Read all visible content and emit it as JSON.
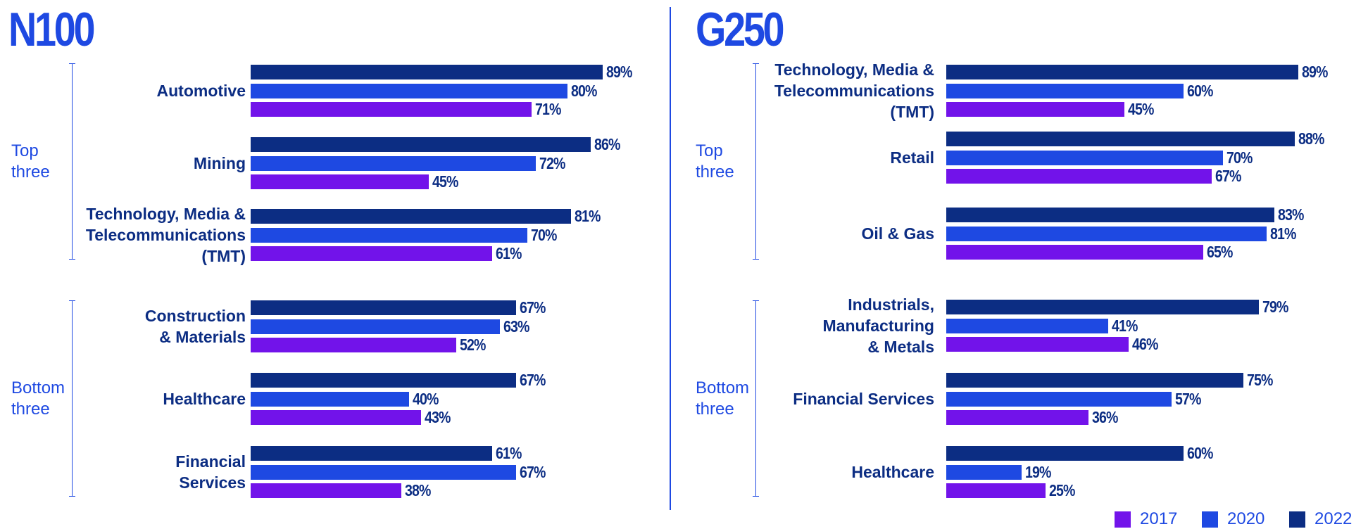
{
  "chart_data": [
    {
      "type": "bar",
      "title": "N100",
      "categories": [
        "Automotive",
        "Mining",
        "Technology, Media &\nTelecommunications\n(TMT)",
        "Construction\n& Materials",
        "Healthcare",
        "Financial\nServices"
      ],
      "groups": [
        "Top\nthree",
        "Bottom\nthree"
      ],
      "xlim": [
        0,
        100
      ],
      "series": [
        {
          "color": "#7213ea",
          "values": [
            71,
            45,
            61,
            52,
            43,
            38
          ],
          "value_labels": [
            "71%",
            "45%",
            "61%",
            "52%",
            "43%",
            "38%"
          ]
        },
        {
          "color": "#1e49e2",
          "values": [
            80,
            72,
            70,
            63,
            40,
            67
          ],
          "value_labels": [
            "80%",
            "72%",
            "70%",
            "63%",
            "40%",
            "67%"
          ]
        },
        {
          "color": "#0c2d83",
          "values": [
            89,
            86,
            81,
            67,
            67,
            61
          ],
          "value_labels": [
            "89%",
            "86%",
            "81%",
            "67%",
            "67%",
            "61%"
          ]
        }
      ]
    },
    {
      "type": "bar",
      "title": "G250",
      "categories": [
        "Technology, Media &\nTelecommunications\n(TMT)",
        "Retail",
        "Oil & Gas",
        "Industrials,\nManufacturing\n& Metals",
        "Financial Services",
        "Healthcare"
      ],
      "groups": [
        "Top\nthree",
        "Bottom\nthree"
      ],
      "xlim": [
        0,
        100
      ],
      "series": [
        {
          "name": "2017",
          "color": "#7213ea",
          "values": [
            45,
            67,
            65,
            46,
            36,
            25
          ],
          "value_labels": [
            "45%",
            "67%",
            "65%",
            "46%",
            "36%",
            "25%"
          ]
        },
        {
          "name": "2020",
          "color": "#1e49e2",
          "values": [
            60,
            70,
            81,
            41,
            57,
            19
          ],
          "value_labels": [
            "60%",
            "70%",
            "81%",
            "41%",
            "57%",
            "19%"
          ]
        },
        {
          "name": "2022",
          "color": "#0c2d83",
          "values": [
            89,
            88,
            83,
            79,
            75,
            60
          ],
          "value_labels": [
            "89%",
            "88%",
            "83%",
            "79%",
            "75%",
            "60%"
          ]
        }
      ]
    }
  ]
}
